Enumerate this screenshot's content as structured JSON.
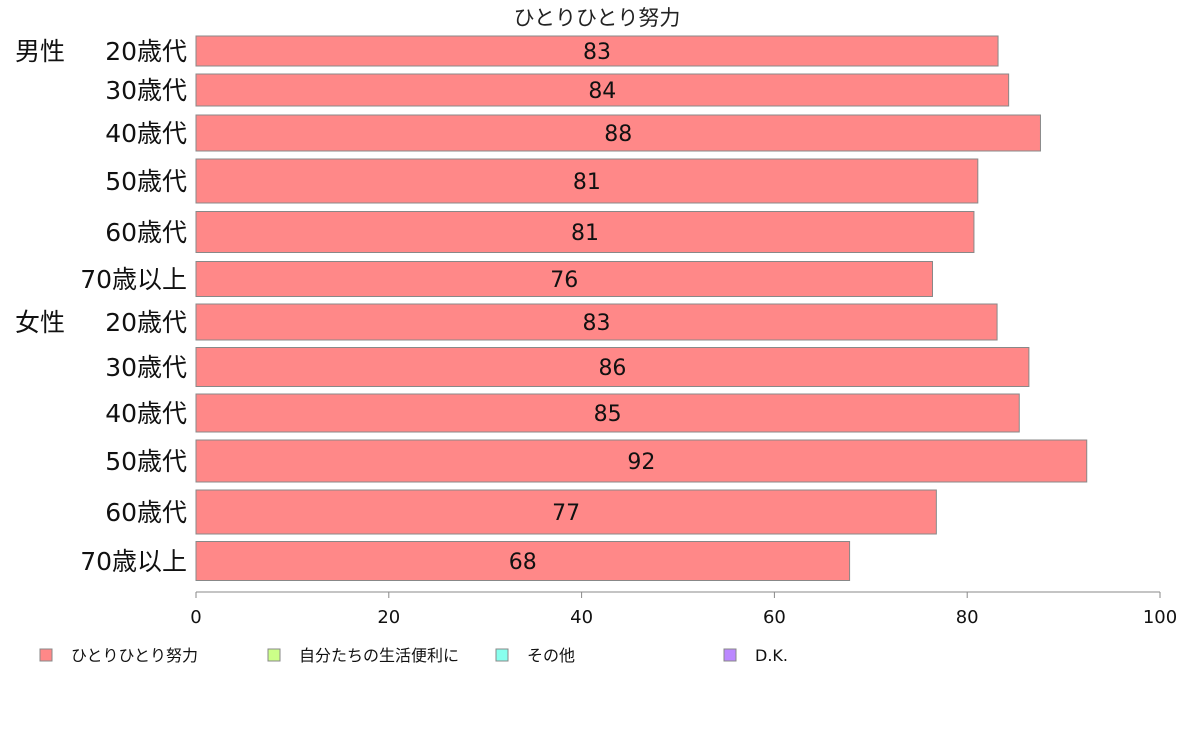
{
  "chart_data": {
    "type": "bar",
    "orientation": "horizontal",
    "title": "ひとりひとり努力",
    "categories": [
      {
        "group": "男性",
        "label": "20歳代"
      },
      {
        "group": "",
        "label": "30歳代"
      },
      {
        "group": "",
        "label": "40歳代"
      },
      {
        "group": "",
        "label": "50歳代"
      },
      {
        "group": "",
        "label": "60歳代"
      },
      {
        "group": "",
        "label": "70歳以上"
      },
      {
        "group": "女性",
        "label": "20歳代"
      },
      {
        "group": "",
        "label": "30歳代"
      },
      {
        "group": "",
        "label": "40歳代"
      },
      {
        "group": "",
        "label": "50歳代"
      },
      {
        "group": "",
        "label": "60歳代"
      },
      {
        "group": "",
        "label": "70歳以上"
      }
    ],
    "series": [
      {
        "name": "ひとりひとり努力",
        "color": "#ff8888",
        "values": [
          83.2,
          84.3,
          87.6,
          81.1,
          80.7,
          76.4,
          83.1,
          86.4,
          85.4,
          92.4,
          76.8,
          67.8
        ]
      },
      {
        "name": "自分たちの生活便利に",
        "color": "#ccff88",
        "values": [
          0,
          0,
          0,
          0,
          0,
          0,
          0,
          0,
          0,
          0,
          0,
          0
        ]
      },
      {
        "name": "その他",
        "color": "#88ffee",
        "values": [
          0,
          0,
          0,
          0,
          0,
          0,
          0,
          0,
          0,
          0,
          0,
          0
        ]
      },
      {
        "name": "D.K.",
        "color": "#bb88ff",
        "values": [
          0,
          0,
          0,
          0,
          0,
          0,
          0,
          0,
          0,
          0,
          0,
          0
        ]
      }
    ],
    "data_labels": [
      "83",
      "84",
      "88",
      "81",
      "81",
      "76",
      "83",
      "86",
      "85",
      "92",
      "77",
      "68"
    ],
    "xlim": [
      0,
      100
    ],
    "xticks": [
      0,
      20,
      40,
      60,
      80,
      100
    ],
    "grid": false,
    "legend_position": "bottom"
  }
}
